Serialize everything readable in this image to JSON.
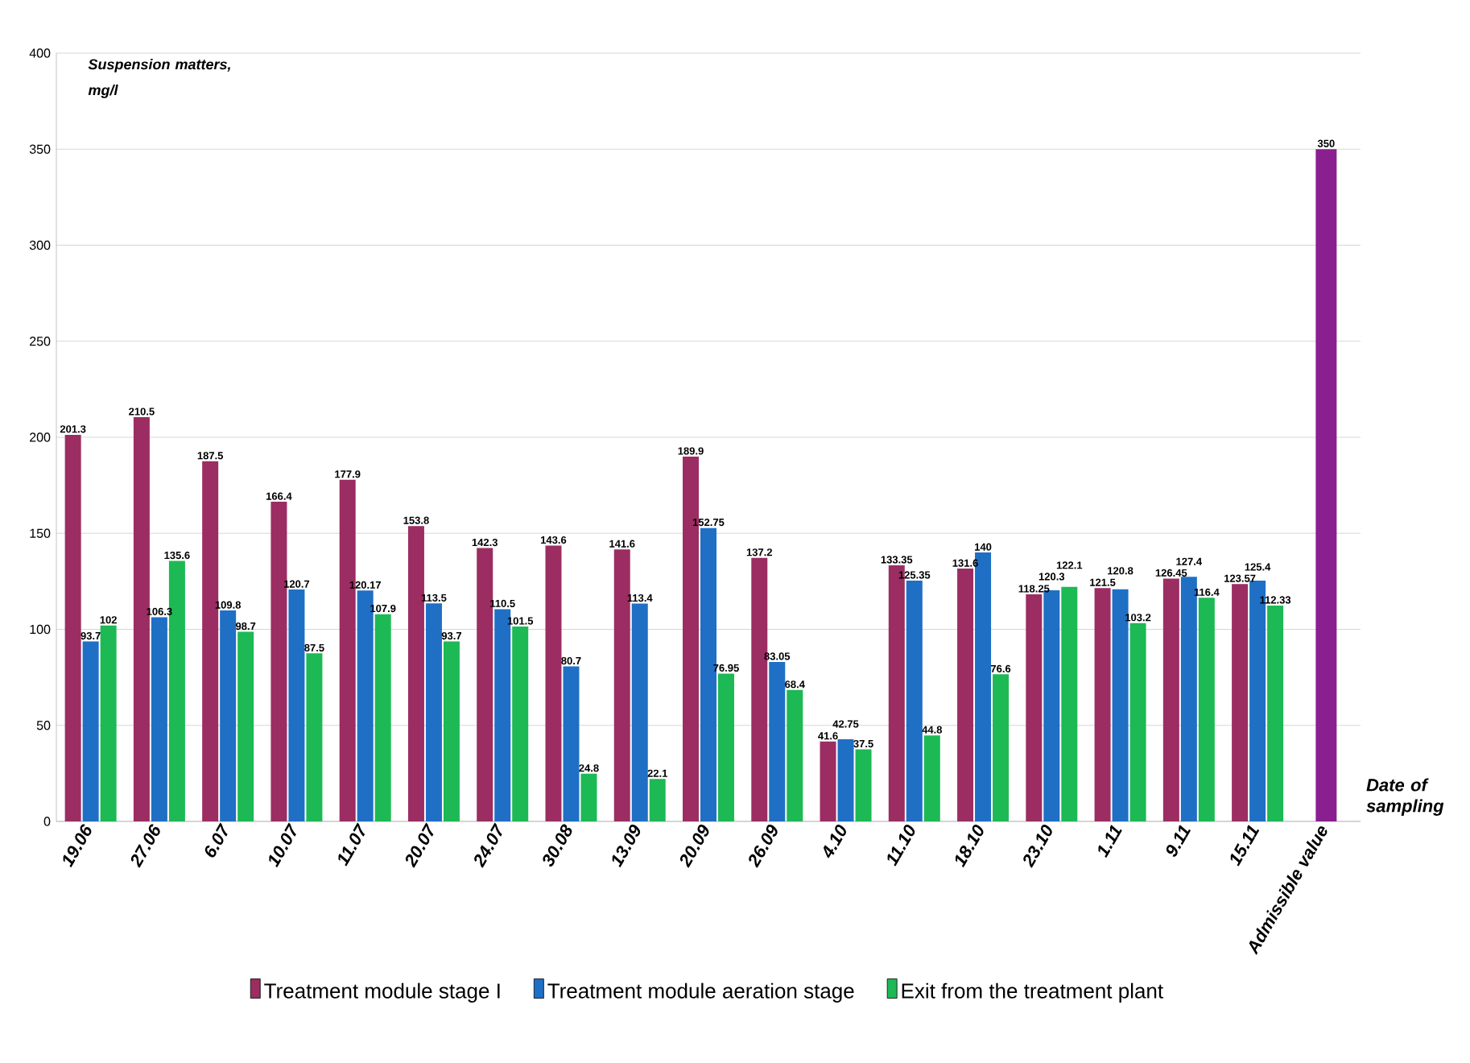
{
  "chart_data": {
    "type": "bar",
    "ylabel": "Suspension matters, mg/l",
    "xlabel": "Date of sampling",
    "categories": [
      "19.06",
      "27.06",
      "6.07",
      "10.07",
      "11.07",
      "20.07",
      "24.07",
      "30.08",
      "13.09",
      "20.09",
      "26.09",
      "4.10",
      "11.10",
      "18.10",
      "23.10",
      "1.11",
      "9.11",
      "15.11",
      "Admissible value"
    ],
    "series": [
      {
        "name": "Treatment module stage I",
        "color": "#9b2d62",
        "values": [
          201.3,
          210.5,
          187.5,
          166.4,
          177.9,
          153.8,
          142.3,
          143.6,
          141.6,
          189.9,
          137.2,
          41.6,
          133.35,
          131.6,
          118.25,
          121.5,
          126.45,
          123.57,
          null
        ],
        "value_labels": [
          "201.3",
          "210.5",
          "187.5",
          "166.4",
          "177.9",
          "153.8",
          "142.3",
          "143.6",
          "141.6",
          "189.9",
          "137.2",
          "41.6",
          "133.35",
          "131.6",
          "118.25",
          "121.5",
          "126.45",
          "123.57",
          null
        ]
      },
      {
        "name": "Treatment module aeration stage",
        "color": "#1f6fc5",
        "values": [
          93.7,
          106.3,
          109.8,
          120.7,
          120.17,
          113.5,
          110.5,
          80.7,
          113.4,
          152.75,
          83.05,
          42.75,
          125.35,
          140,
          120.3,
          120.8,
          127.4,
          125.4,
          null
        ],
        "value_labels": [
          "93.7",
          "106.3",
          "109.8",
          "120.7",
          "120.17",
          "113.5",
          "110.5",
          "80.7",
          "113.4",
          "152.75",
          "83.05",
          "42.75",
          "125.35",
          "140",
          "120.3",
          "120.8",
          "127.4",
          "125.4",
          null
        ]
      },
      {
        "name": "Exit from the treatment plant",
        "color": "#1db954",
        "values": [
          102,
          135.6,
          98.7,
          87.5,
          107.9,
          93.7,
          101.5,
          24.8,
          22.1,
          76.95,
          68.4,
          37.5,
          44.8,
          76.6,
          122.1,
          103.2,
          116.4,
          112.33,
          null
        ],
        "value_labels": [
          "102",
          "135.6",
          "98.7",
          "87.5",
          "107.9",
          "93.7",
          "101.5",
          "24.8",
          "22.1",
          "76.95",
          "68.4",
          "37.5",
          "44.8",
          "76.6",
          "122.1",
          "103.2",
          "116.4",
          "112.33",
          null
        ]
      },
      {
        "color": "#8a1f8f",
        "values": [
          null,
          null,
          null,
          null,
          null,
          null,
          null,
          null,
          null,
          null,
          null,
          null,
          null,
          null,
          null,
          null,
          null,
          null,
          350
        ],
        "value_labels": [
          null,
          null,
          null,
          null,
          null,
          null,
          null,
          null,
          null,
          null,
          null,
          null,
          null,
          null,
          null,
          null,
          null,
          null,
          "350"
        ]
      }
    ],
    "ylim": [
      0,
      400
    ],
    "yticks": [
      0,
      50,
      100,
      150,
      200,
      250,
      300,
      350,
      400
    ],
    "grid": "y",
    "legend": "bottom"
  }
}
